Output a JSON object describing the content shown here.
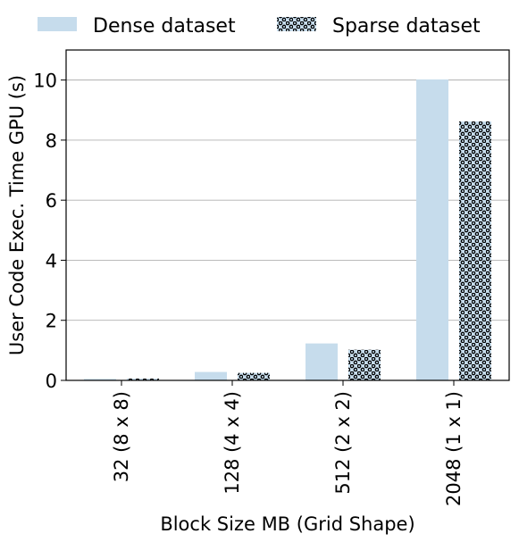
{
  "colors": {
    "bar_fill": "#c6dcec",
    "grid": "#b0b0b0",
    "axis": "#000000",
    "hatch_dot": "#000000"
  },
  "legend": {
    "placement": "top, above plot",
    "entries": [
      {
        "label": "Dense dataset",
        "style": "solid"
      },
      {
        "label": "Sparse dataset",
        "style": "dotted-hatch"
      }
    ]
  },
  "chart_data": {
    "type": "bar",
    "title": "",
    "xlabel": "Block Size MB (Grid Shape)",
    "ylabel": "User Code Exec. Time GPU (s)",
    "categories": [
      "32 (8 x 8)",
      "128 (4 x 4)",
      "512 (2 x 2)",
      "2048 (1 x 1)"
    ],
    "series": [
      {
        "name": "Dense dataset",
        "values": [
          0.05,
          0.28,
          1.23,
          10.02
        ]
      },
      {
        "name": "Sparse dataset",
        "values": [
          0.06,
          0.25,
          1.02,
          8.62
        ]
      }
    ],
    "ylim": [
      0,
      11
    ],
    "yticks": [
      0,
      2,
      4,
      6,
      8,
      10
    ],
    "grid": "horizontal"
  }
}
